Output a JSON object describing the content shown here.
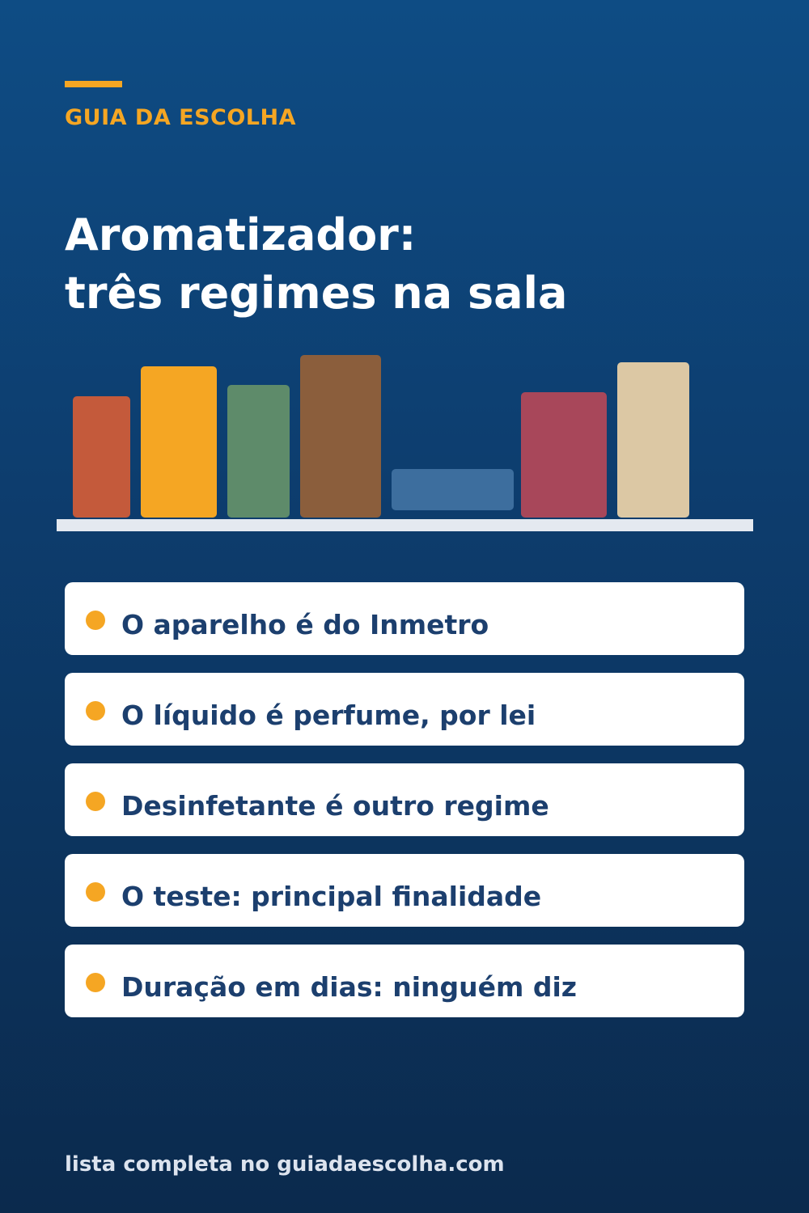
{
  "header": {
    "brand": "GUIA DA ESCOLHA",
    "title_line1": "Aromatizador:",
    "title_line2": "três regimes na sala"
  },
  "illustration": {
    "bottles": [
      {
        "name": "bottle-1",
        "color": "#c45a3b"
      },
      {
        "name": "bottle-2",
        "color": "#f5a623"
      },
      {
        "name": "bottle-3",
        "color": "#5e8b6a"
      },
      {
        "name": "bottle-4",
        "color": "#8b5e3c"
      },
      {
        "name": "bottle-5",
        "color": "#3d6e9e"
      },
      {
        "name": "bottle-6",
        "color": "#a8475a"
      },
      {
        "name": "bottle-7",
        "color": "#dcc8a4"
      }
    ],
    "shelf_color": "#e4e9f0"
  },
  "points": [
    "O aparelho é do Inmetro",
    "O líquido é perfume, por lei",
    "Desinfetante é outro regime",
    "O teste: principal finalidade",
    "Duração em dias: ninguém diz"
  ],
  "footer": {
    "text": "lista completa no guiadaescolha.com"
  },
  "colors": {
    "accent": "#f5a623",
    "card_text": "#1c3f6e"
  }
}
